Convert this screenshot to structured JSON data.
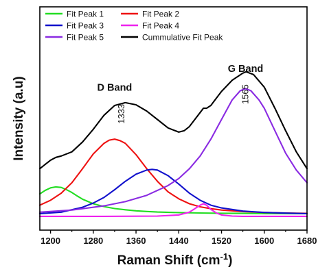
{
  "chart_data": {
    "type": "line",
    "xlabel": "Raman Shift (cm",
    "xlabel_sup": "-1",
    "xlabel_close": ")",
    "ylabel": "Intensity (a.u)",
    "xlim": [
      1180,
      1680
    ],
    "ylim": [
      0,
      1
    ],
    "x_ticks": [
      1200,
      1280,
      1360,
      1440,
      1520,
      1600,
      1680
    ],
    "y_ticks_shown": false,
    "grid": false,
    "legend_position": "top-left",
    "annotations": [
      {
        "name": "d-band",
        "text": "D Band",
        "x": 1320,
        "y": 0.905,
        "style": "band"
      },
      {
        "name": "g-band",
        "text": "G Band",
        "x": 1565,
        "y": 1.04,
        "style": "band"
      },
      {
        "name": "peak-1333",
        "text": "1333",
        "x": 1333,
        "y": 0.74,
        "style": "peak-vertical"
      },
      {
        "name": "peak-1565",
        "text": "1565",
        "x": 1565,
        "y": 0.88,
        "style": "peak-vertical"
      }
    ],
    "series": [
      {
        "name": "Fit Peak 1",
        "color": "#22dd22",
        "x": [
          1180,
          1190,
          1200,
          1210,
          1220,
          1230,
          1240,
          1250,
          1260,
          1280,
          1300,
          1320,
          1340,
          1360,
          1380,
          1400,
          1440,
          1480,
          1520,
          1560,
          1600,
          1640,
          1680
        ],
        "y": [
          0.17,
          0.195,
          0.213,
          0.22,
          0.216,
          0.2,
          0.18,
          0.155,
          0.132,
          0.1,
          0.08,
          0.066,
          0.057,
          0.05,
          0.045,
          0.041,
          0.037,
          0.034,
          0.032,
          0.031,
          0.03,
          0.03,
          0.03
        ]
      },
      {
        "name": "Fit Peak 2",
        "color": "#ee1111",
        "x": [
          1180,
          1200,
          1220,
          1240,
          1260,
          1280,
          1300,
          1310,
          1320,
          1330,
          1340,
          1360,
          1380,
          1400,
          1420,
          1440,
          1460,
          1480,
          1500,
          1520,
          1560,
          1600,
          1640,
          1680
        ],
        "y": [
          0.09,
          0.125,
          0.175,
          0.25,
          0.35,
          0.455,
          0.53,
          0.553,
          0.56,
          0.55,
          0.53,
          0.45,
          0.35,
          0.26,
          0.185,
          0.135,
          0.1,
          0.078,
          0.065,
          0.055,
          0.044,
          0.038,
          0.034,
          0.031
        ]
      },
      {
        "name": "Fit Peak 3",
        "color": "#1111cc",
        "x": [
          1180,
          1220,
          1260,
          1280,
          1300,
          1320,
          1340,
          1360,
          1380,
          1390,
          1400,
          1420,
          1440,
          1460,
          1480,
          1500,
          1520,
          1560,
          1600,
          1640,
          1680
        ],
        "y": [
          0.03,
          0.04,
          0.075,
          0.105,
          0.145,
          0.2,
          0.26,
          0.31,
          0.34,
          0.345,
          0.34,
          0.3,
          0.24,
          0.175,
          0.125,
          0.09,
          0.07,
          0.048,
          0.038,
          0.033,
          0.03
        ]
      },
      {
        "name": "Fit Peak 4",
        "color": "#ee22ee",
        "x": [
          1180,
          1300,
          1400,
          1440,
          1460,
          1470,
          1480,
          1486,
          1492,
          1500,
          1510,
          1520,
          1540,
          1560,
          1600,
          1680
        ],
        "y": [
          0.01,
          0.01,
          0.012,
          0.02,
          0.04,
          0.065,
          0.09,
          0.1,
          0.09,
          0.06,
          0.035,
          0.02,
          0.012,
          0.01,
          0.01,
          0.01
        ]
      },
      {
        "name": "Fit Peak 5",
        "color": "#8a2be2",
        "x": [
          1180,
          1240,
          1300,
          1340,
          1380,
          1420,
          1440,
          1460,
          1480,
          1500,
          1520,
          1540,
          1555,
          1565,
          1575,
          1590,
          1600,
          1620,
          1640,
          1660,
          1680
        ],
        "y": [
          0.04,
          0.055,
          0.085,
          0.115,
          0.16,
          0.23,
          0.28,
          0.35,
          0.44,
          0.56,
          0.7,
          0.84,
          0.905,
          0.92,
          0.905,
          0.84,
          0.78,
          0.62,
          0.46,
          0.34,
          0.25
        ]
      },
      {
        "name": "Cummulative Fit Peak",
        "color": "#000000",
        "x": [
          1180,
          1190,
          1200,
          1210,
          1220,
          1240,
          1260,
          1280,
          1300,
          1320,
          1340,
          1360,
          1380,
          1400,
          1420,
          1440,
          1450,
          1460,
          1470,
          1480,
          1486,
          1492,
          1500,
          1510,
          1520,
          1540,
          1560,
          1566,
          1580,
          1600,
          1620,
          1640,
          1660,
          1680
        ],
        "y": [
          0.35,
          0.38,
          0.41,
          0.43,
          0.44,
          0.47,
          0.54,
          0.63,
          0.73,
          0.8,
          0.82,
          0.805,
          0.76,
          0.7,
          0.64,
          0.61,
          0.62,
          0.65,
          0.7,
          0.75,
          0.78,
          0.78,
          0.8,
          0.85,
          0.9,
          0.98,
          1.03,
          1.04,
          1.02,
          0.93,
          0.78,
          0.62,
          0.47,
          0.35
        ]
      }
    ]
  },
  "colors": {
    "axis": "#000000",
    "background": "#ffffff"
  }
}
